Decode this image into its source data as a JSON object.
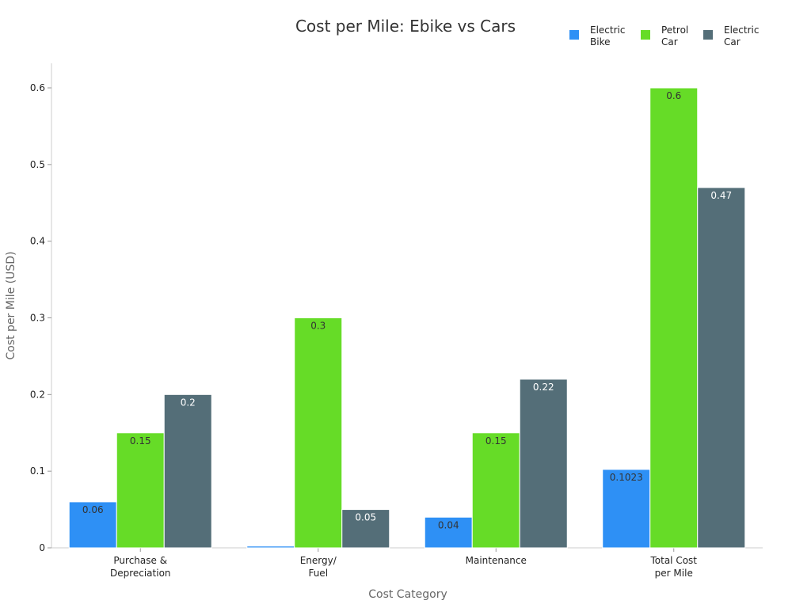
{
  "chart_data": {
    "type": "bar",
    "title": "Cost per Mile: Ebike vs Cars",
    "xlabel": "Cost Category",
    "ylabel": "Cost per Mile (USD)",
    "ylim": [
      0,
      0.63
    ],
    "yticks": [
      0,
      0.1,
      0.2,
      0.3,
      0.4,
      0.5,
      0.6
    ],
    "ytick_labels": [
      "0",
      "0.1",
      "0.2",
      "0.3",
      "0.4",
      "0.5",
      "0.6"
    ],
    "categories": [
      [
        "Purchase &",
        "Depreciation"
      ],
      [
        "Energy/",
        "Fuel"
      ],
      [
        "Maintenance"
      ],
      [
        "Total Cost",
        "per Mile"
      ]
    ],
    "series": [
      {
        "name": [
          "Electric",
          "Bike"
        ],
        "color": "#2e90f5",
        "label_color": "#333333",
        "values": [
          0.06,
          0.0023,
          0.04,
          0.1023
        ],
        "value_labels": [
          "0.06",
          "",
          "0.04",
          "0.1023"
        ]
      },
      {
        "name": [
          "Petrol",
          "Car"
        ],
        "color": "#66dc27",
        "label_color": "#333333",
        "values": [
          0.15,
          0.3,
          0.15,
          0.6
        ],
        "value_labels": [
          "0.15",
          "0.3",
          "0.15",
          "0.6"
        ]
      },
      {
        "name": [
          "Electric",
          "Car"
        ],
        "color": "#546e78",
        "label_color": "#ffffff",
        "values": [
          0.2,
          0.05,
          0.22,
          0.47
        ],
        "value_labels": [
          "0.2",
          "0.05",
          "0.22",
          "0.47"
        ]
      }
    ],
    "legend_position": "top-right",
    "grid": false
  }
}
